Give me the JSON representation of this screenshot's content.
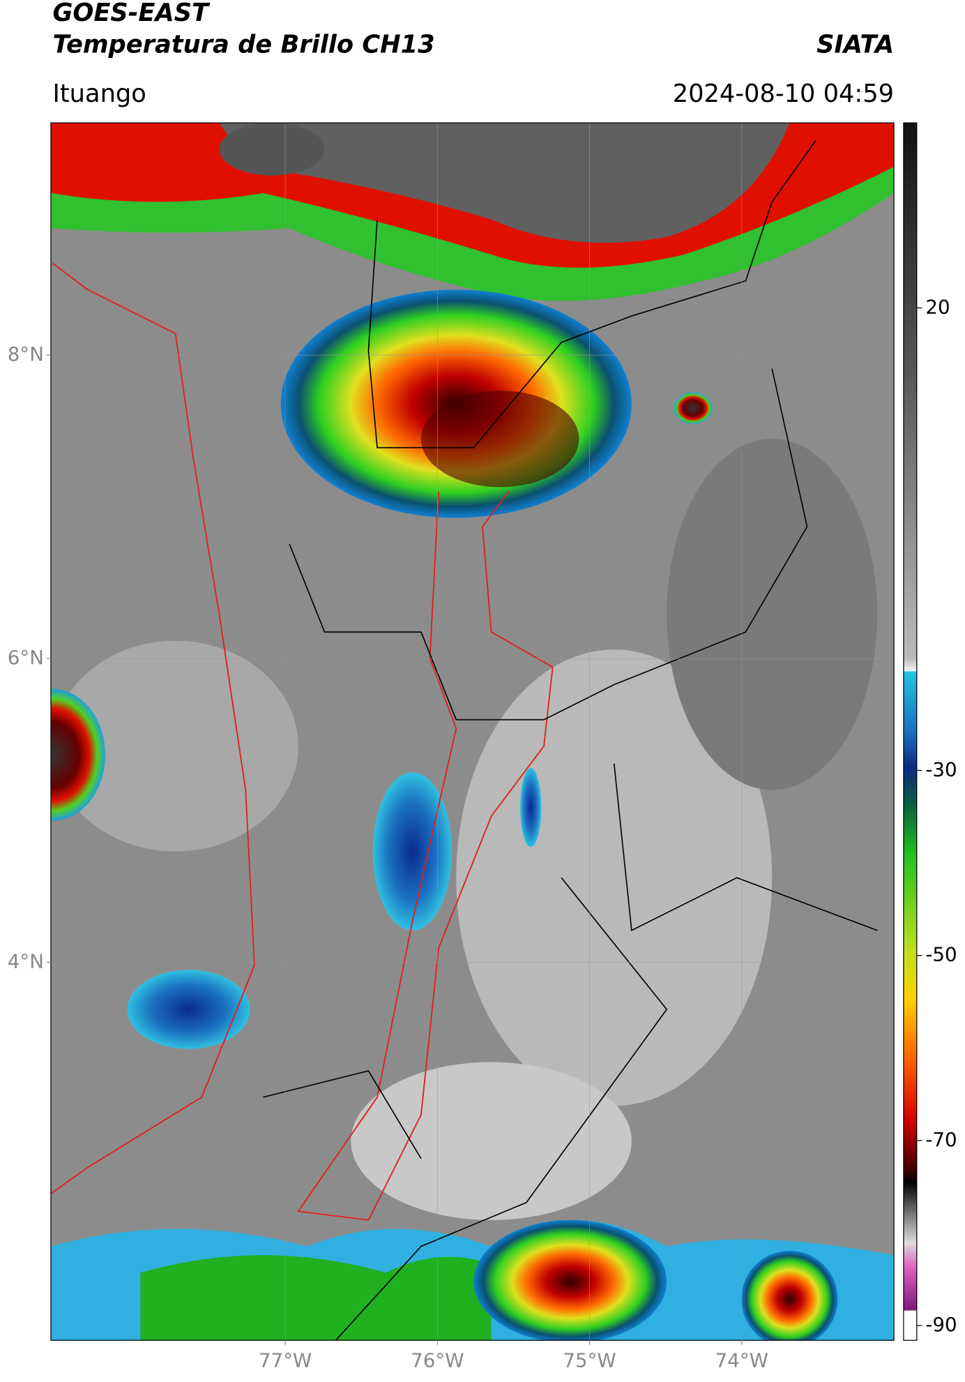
{
  "header": {
    "satellite": "GOES-EAST",
    "product": "Temperatura de Brillo CH13",
    "brand": "SIATA",
    "location": "Ituango",
    "timestamp": "2024-08-10 04:59"
  },
  "map": {
    "xlim": [
      -78.54,
      -73.0
    ],
    "ylim": [
      1.51,
      9.53
    ],
    "yticks": [
      {
        "value": 8,
        "label": "8°N"
      },
      {
        "value": 6,
        "label": "6°N"
      },
      {
        "value": 4,
        "label": "4°N"
      }
    ],
    "xticks": [
      {
        "value": -77,
        "label": "77°W"
      },
      {
        "value": -76,
        "label": "76°W"
      },
      {
        "value": -75,
        "label": "75°W"
      },
      {
        "value": -74,
        "label": "74°W"
      }
    ]
  },
  "colorbar": {
    "lim": [
      40,
      -91.6
    ],
    "ticks": [
      20,
      -30,
      -50,
      -70,
      -90
    ]
  }
}
